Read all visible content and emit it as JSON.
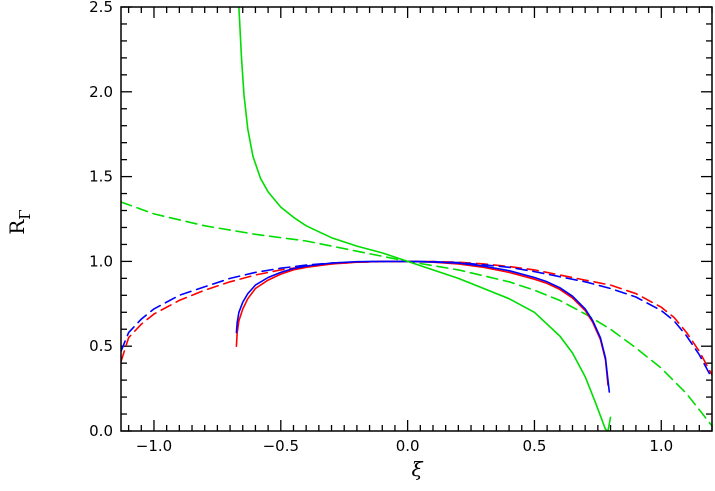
{
  "chart_data": {
    "type": "line",
    "title": "",
    "xlabel": "ξ",
    "ylabel_main": "R",
    "ylabel_sub": "Γ",
    "xlim": [
      -1.13,
      1.2
    ],
    "ylim": [
      0.0,
      2.5
    ],
    "xticks": [
      -1.0,
      -0.5,
      0.0,
      0.5,
      1.0
    ],
    "xtick_labels": [
      "−1.0",
      "−0.5",
      "0.0",
      "0.5",
      "1.0"
    ],
    "yticks": [
      0.0,
      0.5,
      1.0,
      1.5,
      2.0,
      2.5
    ],
    "ytick_labels": [
      "0.0",
      "0.5",
      "1.0",
      "1.5",
      "2.0",
      "2.5"
    ],
    "grid": false,
    "series": [
      {
        "color": "#ff0000",
        "dash": "dashed",
        "x": [
          -1.13,
          -1.1,
          -1.05,
          -1.0,
          -0.9,
          -0.8,
          -0.7,
          -0.6,
          -0.5,
          -0.4,
          -0.3,
          -0.2,
          -0.1,
          0.0,
          0.1,
          0.2,
          0.3,
          0.4,
          0.5,
          0.6,
          0.7,
          0.8,
          0.9,
          1.0,
          1.05,
          1.1,
          1.15,
          1.2
        ],
        "y": [
          0.41,
          0.55,
          0.63,
          0.69,
          0.77,
          0.83,
          0.88,
          0.92,
          0.95,
          0.97,
          0.985,
          0.995,
          0.999,
          1.0,
          0.999,
          0.995,
          0.985,
          0.97,
          0.95,
          0.92,
          0.89,
          0.86,
          0.81,
          0.73,
          0.67,
          0.58,
          0.47,
          0.33
        ]
      },
      {
        "color": "#0000ff",
        "dash": "dashed",
        "x": [
          -1.13,
          -1.1,
          -1.05,
          -1.0,
          -0.9,
          -0.8,
          -0.7,
          -0.6,
          -0.5,
          -0.4,
          -0.3,
          -0.2,
          -0.1,
          0.0,
          0.1,
          0.2,
          0.3,
          0.4,
          0.5,
          0.6,
          0.7,
          0.8,
          0.9,
          1.0,
          1.05,
          1.1,
          1.15,
          1.2
        ],
        "y": [
          0.47,
          0.58,
          0.66,
          0.72,
          0.8,
          0.85,
          0.9,
          0.935,
          0.96,
          0.978,
          0.99,
          0.997,
          1.0,
          1.0,
          0.998,
          0.993,
          0.98,
          0.965,
          0.94,
          0.91,
          0.88,
          0.84,
          0.79,
          0.71,
          0.65,
          0.56,
          0.45,
          0.31
        ]
      },
      {
        "color": "#00dd00",
        "dash": "dashed",
        "x": [
          -1.13,
          -1.0,
          -0.8,
          -0.6,
          -0.4,
          -0.2,
          0.0,
          0.2,
          0.4,
          0.5,
          0.6,
          0.7,
          0.8,
          0.9,
          1.0,
          1.1,
          1.2
        ],
        "y": [
          1.35,
          1.28,
          1.21,
          1.16,
          1.12,
          1.06,
          1.0,
          0.95,
          0.88,
          0.83,
          0.77,
          0.69,
          0.6,
          0.49,
          0.37,
          0.22,
          0.03
        ]
      },
      {
        "color": "#ff0000",
        "dash": "solid",
        "x": [
          -0.675,
          -0.672,
          -0.665,
          -0.65,
          -0.63,
          -0.6,
          -0.55,
          -0.5,
          -0.45,
          -0.4,
          -0.3,
          -0.2,
          -0.1,
          0.0,
          0.1,
          0.2,
          0.3,
          0.4,
          0.5,
          0.55,
          0.6,
          0.65,
          0.7,
          0.73,
          0.76,
          0.78,
          0.79
        ],
        "y": [
          0.5,
          0.58,
          0.65,
          0.72,
          0.78,
          0.84,
          0.89,
          0.925,
          0.95,
          0.965,
          0.985,
          0.995,
          1.0,
          1.0,
          0.995,
          0.985,
          0.965,
          0.935,
          0.895,
          0.87,
          0.835,
          0.785,
          0.71,
          0.64,
          0.54,
          0.42,
          0.27
        ]
      },
      {
        "color": "#0000ff",
        "dash": "solid",
        "x": [
          -0.675,
          -0.672,
          -0.665,
          -0.65,
          -0.63,
          -0.6,
          -0.55,
          -0.5,
          -0.45,
          -0.4,
          -0.3,
          -0.2,
          -0.1,
          0.0,
          0.1,
          0.2,
          0.3,
          0.4,
          0.5,
          0.55,
          0.6,
          0.65,
          0.7,
          0.73,
          0.76,
          0.78,
          0.795
        ],
        "y": [
          0.58,
          0.64,
          0.7,
          0.76,
          0.81,
          0.86,
          0.905,
          0.935,
          0.958,
          0.972,
          0.99,
          0.998,
          1.0,
          1.0,
          0.997,
          0.99,
          0.972,
          0.945,
          0.905,
          0.88,
          0.845,
          0.795,
          0.72,
          0.65,
          0.55,
          0.43,
          0.23
        ]
      },
      {
        "color": "#00dd00",
        "dash": "solid",
        "x": [
          -0.665,
          -0.655,
          -0.645,
          -0.63,
          -0.61,
          -0.58,
          -0.55,
          -0.5,
          -0.45,
          -0.4,
          -0.3,
          -0.2,
          -0.1,
          0.0,
          0.1,
          0.2,
          0.3,
          0.4,
          0.5,
          0.6,
          0.65,
          0.7,
          0.74,
          0.78,
          0.79,
          0.8
        ],
        "y": [
          2.5,
          2.2,
          1.98,
          1.78,
          1.62,
          1.49,
          1.41,
          1.32,
          1.26,
          1.21,
          1.14,
          1.09,
          1.05,
          1.0,
          0.95,
          0.9,
          0.84,
          0.78,
          0.7,
          0.56,
          0.46,
          0.32,
          0.17,
          0.01,
          0.0,
          0.08
        ]
      }
    ]
  }
}
